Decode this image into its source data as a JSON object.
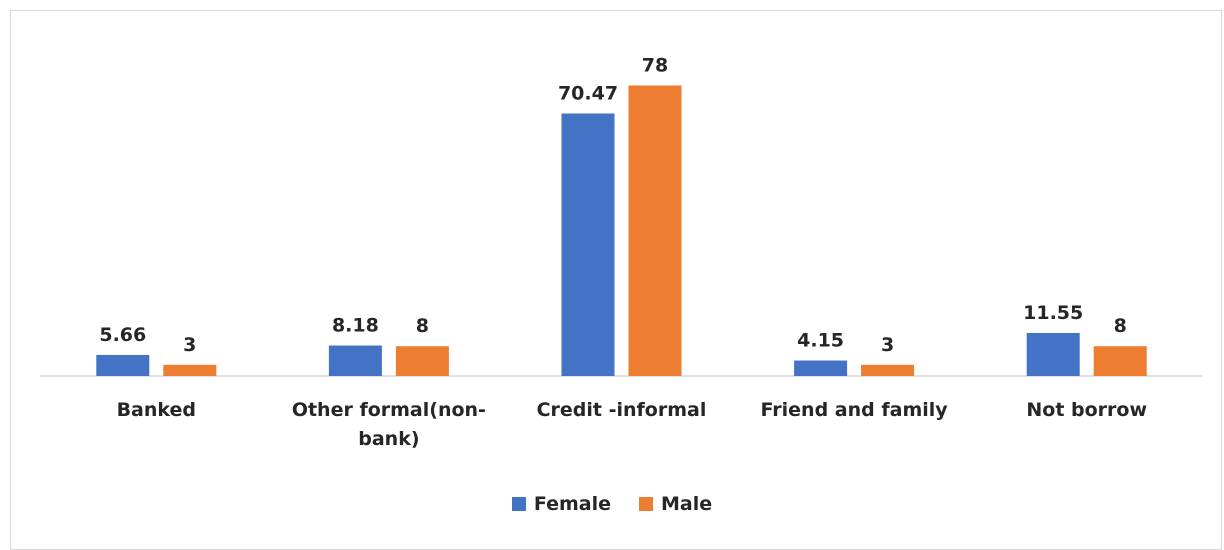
{
  "chart_data": {
    "type": "bar",
    "categories": [
      "Banked",
      "Other formal(non-bank)",
      "Credit -informal",
      "Friend and family",
      "Not borrow"
    ],
    "series": [
      {
        "name": "Female",
        "color": "#4472c4",
        "values": [
          5.66,
          8.18,
          70.47,
          4.15,
          11.55
        ]
      },
      {
        "name": "Male",
        "color": "#ed7d31",
        "values": [
          3,
          8,
          78,
          3,
          8
        ]
      }
    ],
    "ylim": [
      0,
      80
    ],
    "legend": "bottom"
  }
}
